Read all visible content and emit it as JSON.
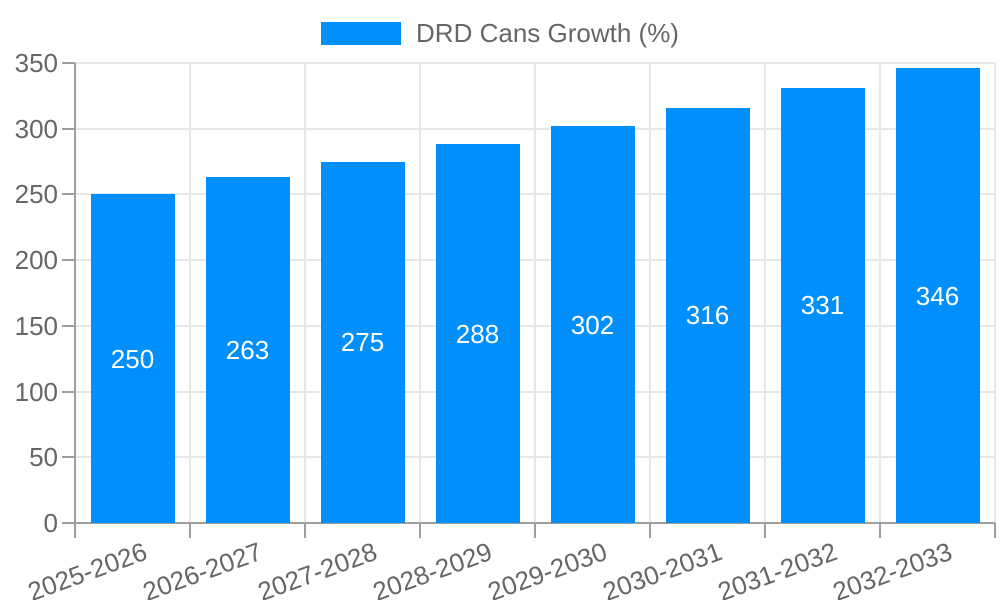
{
  "chart_data": {
    "type": "bar",
    "title": "DRD Cans Growth (%)",
    "categories": [
      "2025-2026",
      "2026-2027",
      "2027-2028",
      "2028-2029",
      "2029-2030",
      "2030-2031",
      "2031-2032",
      "2032-2033"
    ],
    "values": [
      250,
      263,
      275,
      288,
      302,
      316,
      331,
      346
    ],
    "xlabel": "",
    "ylabel": "",
    "ylim": [
      0,
      350
    ],
    "ytick_step": 50,
    "ytick_labels": [
      "0",
      "50",
      "100",
      "150",
      "200",
      "250",
      "300",
      "350"
    ],
    "grid": "horizontal and vertical gridlines on",
    "legend_position": "top-center",
    "data_labels": "white, centered inside bars"
  },
  "legend": {
    "items": [
      {
        "label": "DRD Cans Growth (%)",
        "swatch_color": "#008FFB"
      }
    ]
  },
  "colors": {
    "bar": "#008FFB",
    "axis_line": "#9e9e9e",
    "grid_line": "#e7e7e7",
    "tick_text": "#666666",
    "legend_text": "#666666",
    "value_label": "#ffffff",
    "background": "#ffffff"
  }
}
